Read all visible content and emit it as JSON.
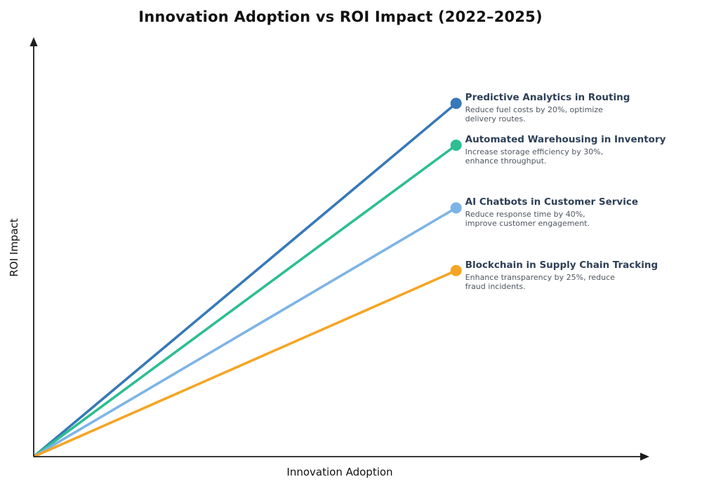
{
  "title": "Innovation Adoption vs ROI Impact (2022–2025)",
  "axes": {
    "x_label": "Innovation Adoption",
    "y_label": "ROI Impact",
    "ticks_visible": false,
    "gridlines": false,
    "axis_color": "#1c1c1c",
    "arrow_tipped": true
  },
  "colors": {
    "background": "#ffffff",
    "title_text": "#111111",
    "annotation_title": "#2e4057",
    "annotation_desc": "#4e555e"
  },
  "chart_data": {
    "type": "line",
    "title": "Innovation Adoption vs ROI Impact (2022–2025)",
    "xlabel": "Innovation Adoption",
    "ylabel": "ROI Impact",
    "x_range": [
      0,
      1
    ],
    "y_range": [
      0,
      1
    ],
    "legend_position": "none",
    "grid": false,
    "annotations_right_of_endpoints": true,
    "series": [
      {
        "name": "Predictive Analytics in Routing",
        "description": "Reduce fuel costs by 20%, optimize delivery routes.",
        "description_lines": [
          "Reduce fuel costs by 20%, optimize",
          "delivery routes."
        ],
        "color": "#3778b9",
        "start": {
          "x": 0,
          "y": 0
        },
        "end": {
          "x": 0.69,
          "y": 0.845
        }
      },
      {
        "name": "Automated Warehousing in Inventory",
        "description": "Increase storage efficiency by 30%, enhance throughput.",
        "description_lines": [
          "Increase storage efficiency by 30%,",
          "enhance throughput."
        ],
        "color": "#2dbe91",
        "start": {
          "x": 0,
          "y": 0
        },
        "end": {
          "x": 0.69,
          "y": 0.745
        }
      },
      {
        "name": "AI Chatbots in Customer Service",
        "description": "Reduce response time by 40%, improve customer engagement.",
        "description_lines": [
          "Reduce response time by 40%,",
          "improve customer engagement."
        ],
        "color": "#7db4e6",
        "start": {
          "x": 0,
          "y": 0
        },
        "end": {
          "x": 0.69,
          "y": 0.595
        }
      },
      {
        "name": "Blockchain in Supply Chain Tracking",
        "description": "Enhance transparency by 25%, reduce fraud incidents.",
        "description_lines": [
          "Enhance transparency by 25%, reduce",
          "fraud incidents."
        ],
        "color": "#f5a523",
        "start": {
          "x": 0,
          "y": 0
        },
        "end": {
          "x": 0.69,
          "y": 0.445
        }
      }
    ]
  }
}
